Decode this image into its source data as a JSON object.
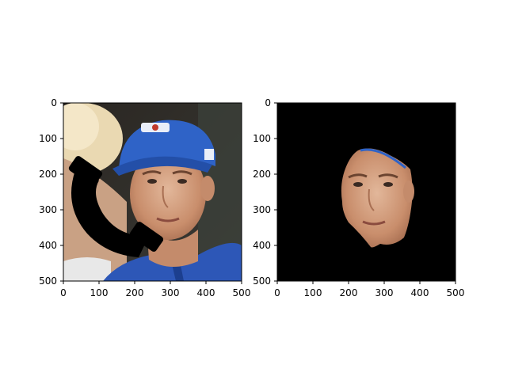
{
  "figure": {
    "panels": [
      {
        "name": "left-panel",
        "description_kind": "photo-with-occlusion",
        "xticks": [
          "0",
          "100",
          "200",
          "300",
          "400",
          "500"
        ],
        "yticks": [
          "0",
          "100",
          "200",
          "300",
          "400",
          "500"
        ],
        "xlim": [
          0,
          500
        ],
        "ylim": [
          0,
          500
        ]
      },
      {
        "name": "right-panel",
        "description_kind": "masked-face",
        "xticks": [
          "0",
          "100",
          "200",
          "300",
          "400",
          "500"
        ],
        "yticks": [
          "0",
          "100",
          "200",
          "300",
          "400",
          "500"
        ],
        "xlim": [
          0,
          500
        ],
        "ylim": [
          0,
          500
        ]
      }
    ],
    "colors": {
      "background": "#ffffff",
      "cap_blue": "#2f63c7",
      "jacket_blue": "#2d57b7",
      "skin": "#d8a98b",
      "hair_blond": "#e7d7b4",
      "mask_black": "#000000",
      "photo_bg_dark": "#1b1a18"
    },
    "icons": [
      "phone-handset-icon"
    ]
  }
}
